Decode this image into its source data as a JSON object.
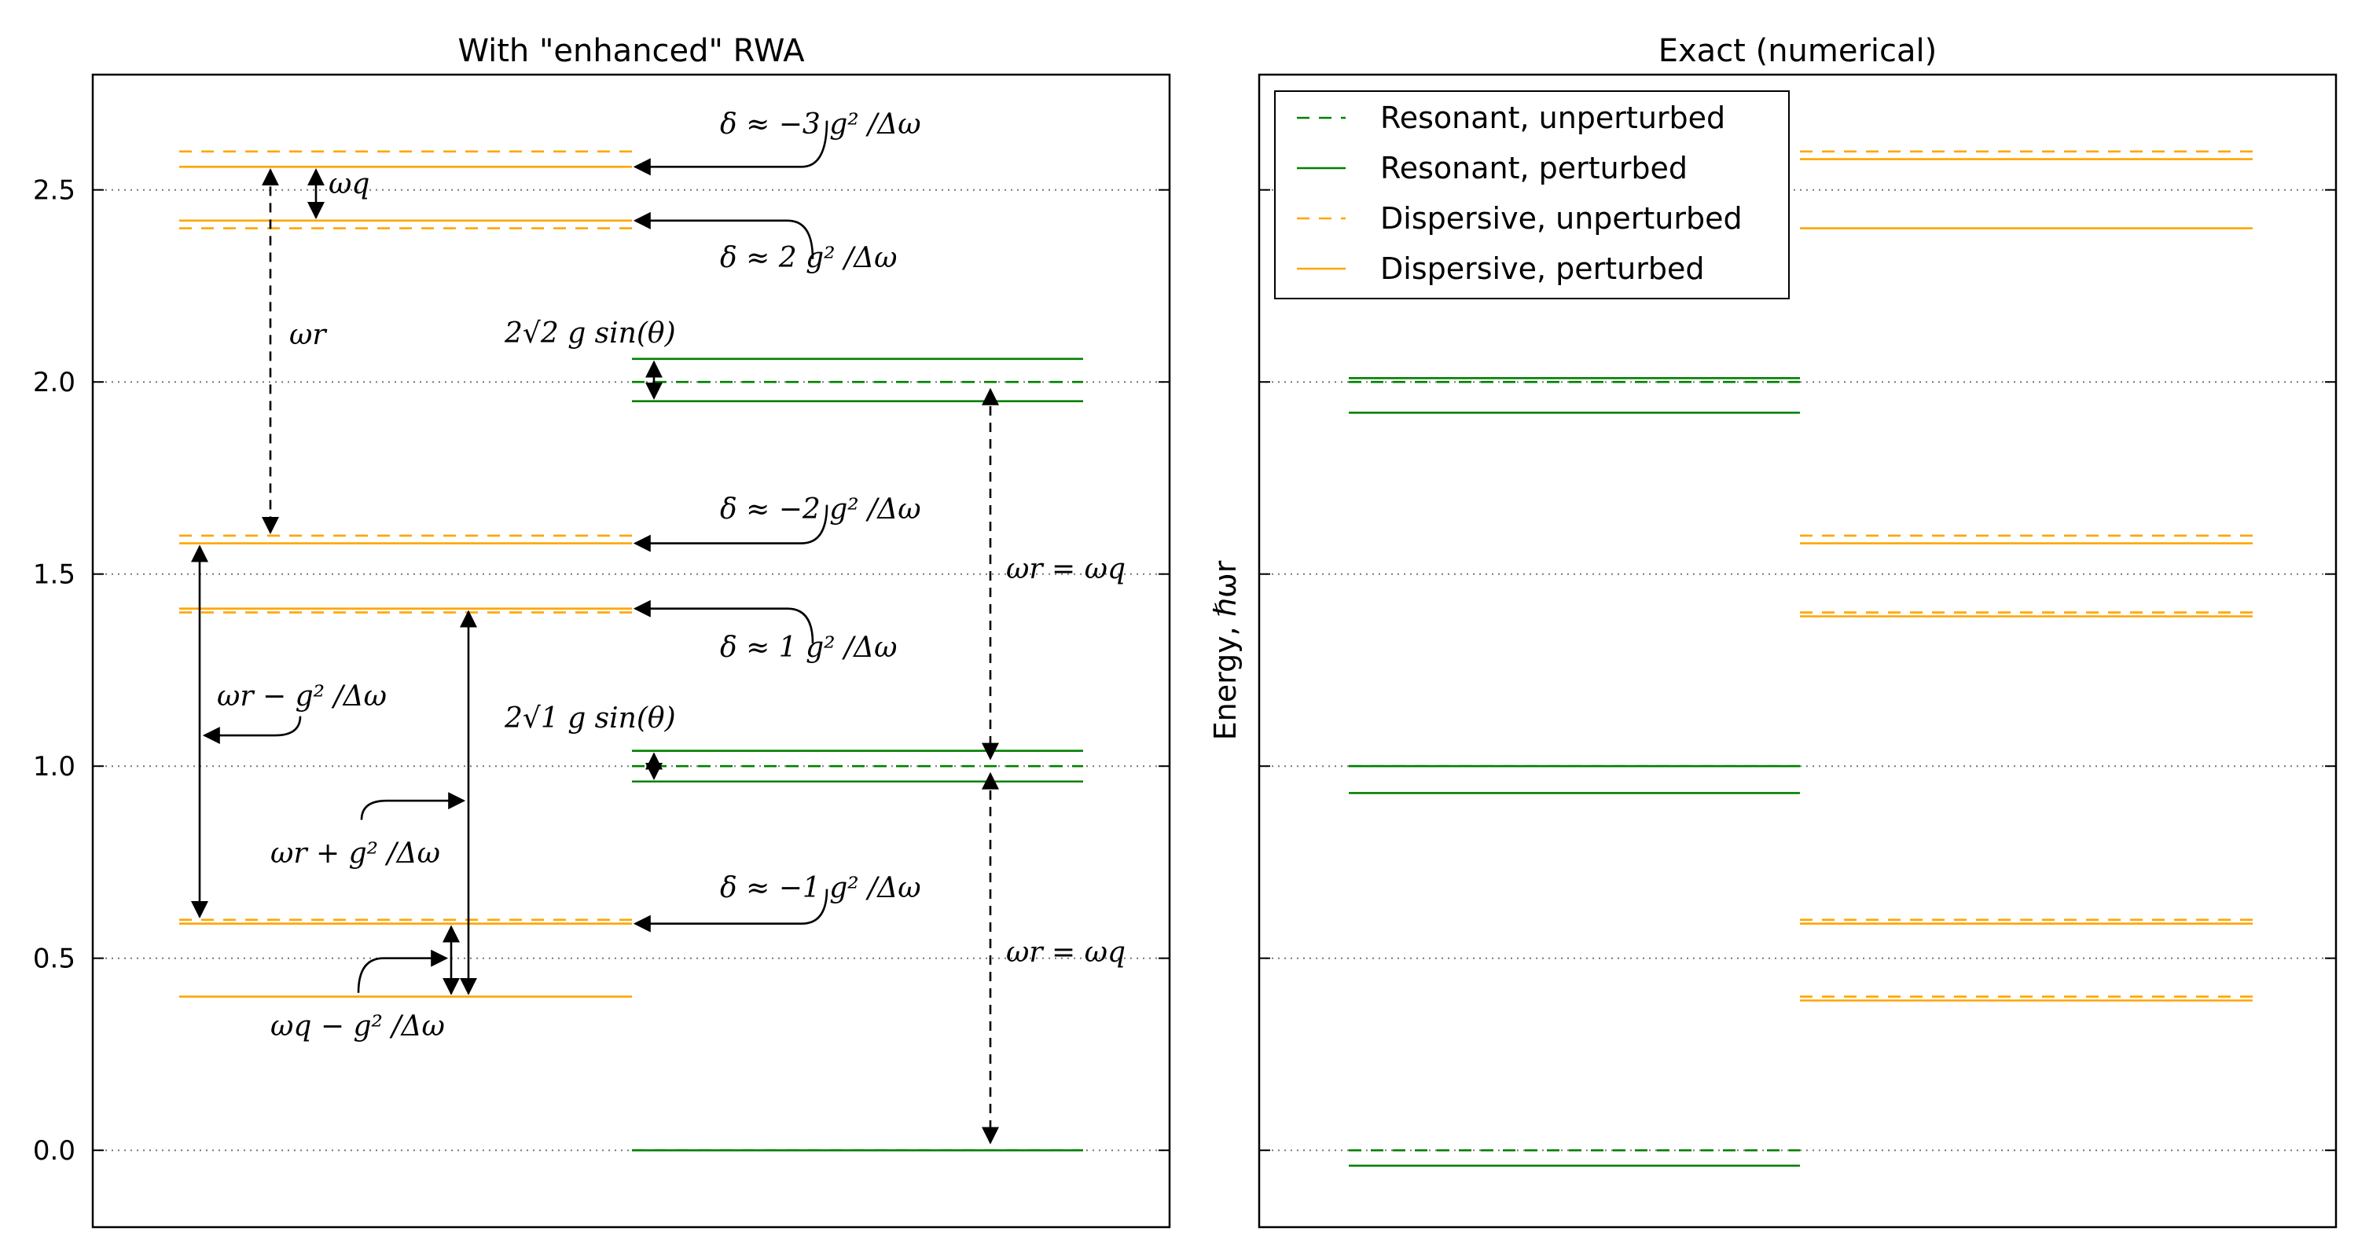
{
  "chart_data": [
    {
      "type": "line",
      "title": "With \"enhanced\" RWA",
      "xlabel": "",
      "ylabel": "",
      "ylim": [
        -0.2,
        2.8
      ],
      "yticks": [
        "0.0",
        "0.5",
        "1.0",
        "1.5",
        "2.0",
        "2.5"
      ],
      "ytick_values": [
        0.0,
        0.5,
        1.0,
        1.5,
        2.0,
        2.5
      ],
      "grid": "horizontal dotted",
      "colors": {
        "resonant": "#008000",
        "dispersive": "#FFA500"
      },
      "dispersive_unperturbed": [
        0.6,
        1.4,
        1.6,
        2.4,
        2.6
      ],
      "dispersive_perturbed": [
        0.4,
        0.59,
        1.41,
        1.58,
        2.42,
        2.56
      ],
      "resonant_unperturbed": [
        0.0,
        1.0,
        2.0
      ],
      "resonant_perturbed": [
        0.0,
        0.96,
        1.04,
        1.95,
        2.06
      ],
      "annotations": [
        {
          "id": "wq",
          "text": "ωq"
        },
        {
          "id": "wr",
          "text": "ωr"
        },
        {
          "id": "d_m3",
          "text": "δ ≈ −3 g² /Δω"
        },
        {
          "id": "d_2",
          "text": "δ ≈ 2 g² /Δω"
        },
        {
          "id": "split2",
          "text": "2√2 g sin(θ)"
        },
        {
          "id": "d_m2",
          "text": "δ ≈ −2 g² /Δω"
        },
        {
          "id": "d_1",
          "text": "δ ≈ 1 g² /Δω"
        },
        {
          "id": "wr_eq_wq_1",
          "text": "ωr = ωq"
        },
        {
          "id": "wr_minus",
          "text": "ωr − g² /Δω"
        },
        {
          "id": "split1",
          "text": "2√1 g sin(θ)"
        },
        {
          "id": "wr_plus",
          "text": "ωr + g² /Δω"
        },
        {
          "id": "d_m1",
          "text": "δ ≈ −1 g² /Δω"
        },
        {
          "id": "wr_eq_wq_2",
          "text": "ωr = ωq"
        },
        {
          "id": "wq_minus",
          "text": "ωq − g² /Δω"
        }
      ]
    },
    {
      "type": "line",
      "title": "Exact (numerical)",
      "xlabel": "",
      "ylabel": "Energy, ℏωr",
      "ylim": [
        -0.2,
        2.8
      ],
      "grid": "horizontal dotted",
      "legend_position": "upper-left",
      "legend": [
        {
          "label": "Resonant, unperturbed",
          "color": "#008000",
          "style": "dashed"
        },
        {
          "label": "Resonant, perturbed",
          "color": "#008000",
          "style": "solid"
        },
        {
          "label": "Dispersive, unperturbed",
          "color": "#FFA500",
          "style": "dashed"
        },
        {
          "label": "Dispersive, perturbed",
          "color": "#FFA500",
          "style": "solid"
        }
      ],
      "resonant_unperturbed": [
        0.0,
        1.0,
        2.0
      ],
      "resonant_perturbed": [
        -0.04,
        0.93,
        1.0,
        1.92,
        2.01
      ],
      "dispersive_unperturbed": [
        0.4,
        0.6,
        1.4,
        1.6,
        2.6
      ],
      "dispersive_perturbed": [
        0.39,
        0.59,
        1.39,
        1.58,
        2.4,
        2.58
      ]
    }
  ]
}
